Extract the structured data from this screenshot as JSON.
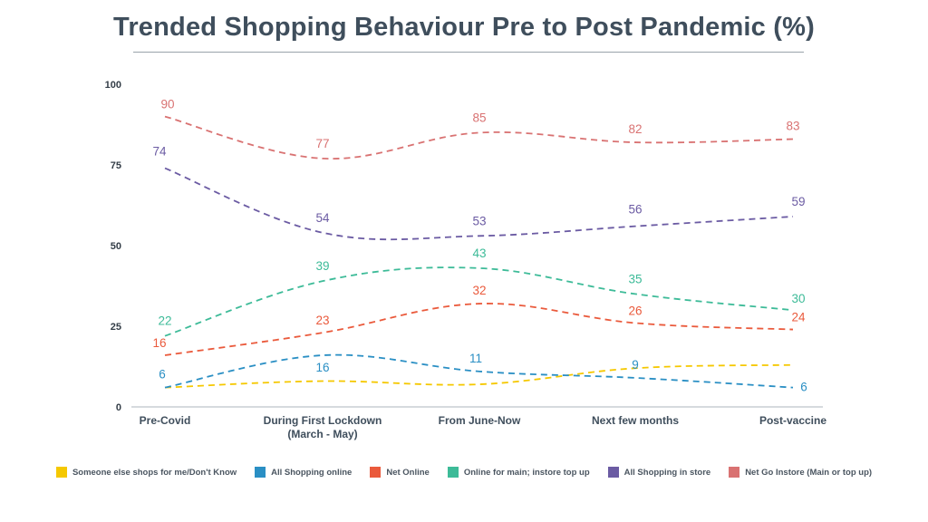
{
  "chart_data": {
    "type": "line",
    "title": "Trended Shopping Behaviour Pre to Post Pandemic (%)",
    "xlabel": "",
    "ylabel": "",
    "ylim": [
      0,
      100
    ],
    "yticks": [
      "0",
      "25",
      "50",
      "75",
      "100"
    ],
    "ytick_values": [
      0,
      25,
      50,
      75,
      100
    ],
    "categories": [
      [
        "Pre-Covid"
      ],
      [
        "During First Lockdown",
        "(March - May)"
      ],
      [
        "From June-Now"
      ],
      [
        "Next few months"
      ],
      [
        "Post-vaccine"
      ]
    ],
    "grid": false,
    "line_style": "dashed",
    "legend_position": "bottom",
    "series": [
      {
        "name": "Someone else shops for me/Don't Know",
        "color": "#f5c800",
        "values": [
          6,
          8,
          7,
          12,
          13
        ],
        "labels_shown": false
      },
      {
        "name": "All Shopping online",
        "color": "#2a8fc4",
        "values": [
          6,
          16,
          11,
          9,
          6
        ],
        "labels_shown": true
      },
      {
        "name": "Net Online",
        "color": "#ea5a3c",
        "values": [
          16,
          23,
          32,
          26,
          24
        ],
        "labels_shown": true
      },
      {
        "name": "Online for main; instore top up",
        "color": "#3dbb98",
        "values": [
          22,
          39,
          43,
          35,
          30
        ],
        "labels_shown": true
      },
      {
        "name": "All Shopping in store",
        "color": "#6b5ba3",
        "values": [
          74,
          54,
          53,
          56,
          59
        ],
        "labels_shown": true
      },
      {
        "name": "Net Go Instore (Main or top up)",
        "color": "#d97272",
        "values": [
          90,
          77,
          85,
          82,
          83
        ],
        "labels_shown": true
      }
    ]
  }
}
